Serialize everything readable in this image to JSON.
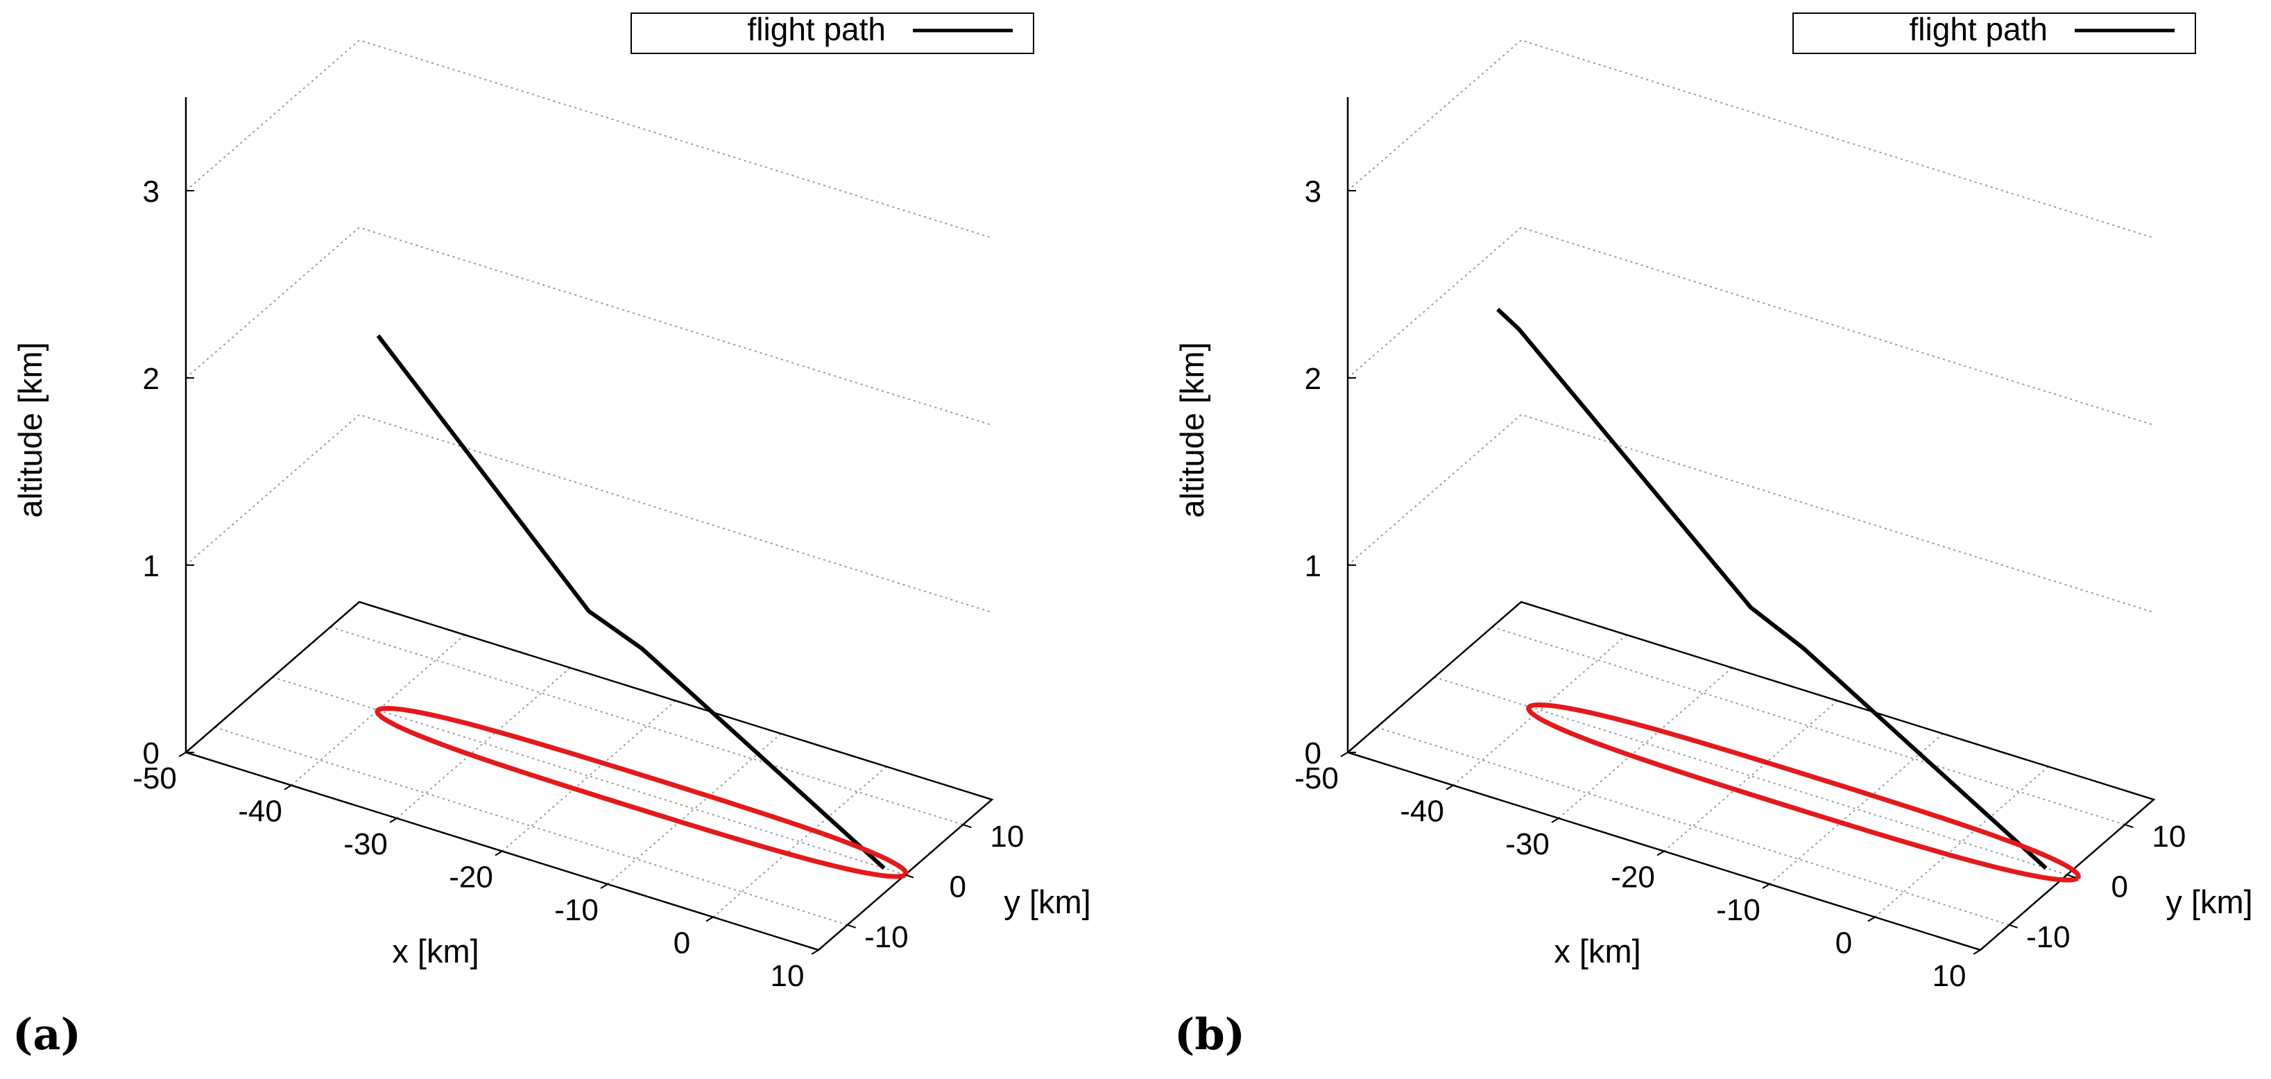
{
  "chart_data": [
    {
      "type": "line3d",
      "panel_label": "(a)",
      "legend": {
        "label": "flight path",
        "placement": "top-right"
      },
      "xlabel": "x [km]",
      "ylabel": "y [km]",
      "zlabel": "altitude [km]",
      "xlim": [
        -50,
        10
      ],
      "ylim": [
        -15,
        15
      ],
      "zlim": [
        0,
        3.5
      ],
      "x_ticks": [
        "-50",
        "-40",
        "-30",
        "-20",
        "-10",
        "0",
        "10"
      ],
      "y_ticks": [
        "-10",
        "0",
        "10"
      ],
      "z_ticks": [
        "0",
        "1",
        "2",
        "3"
      ],
      "series": [
        {
          "name": "flight path",
          "color": "#000000",
          "x": [
            -40,
            -20,
            -15,
            8
          ],
          "y": [
            0,
            0,
            0,
            0
          ],
          "z": [
            2.0,
            0.88,
            0.77,
            0.0
          ]
        },
        {
          "name": "loiter orbit",
          "color": "#e31a1c",
          "center": [
            -15,
            0,
            0
          ],
          "half_length_km": 25,
          "half_width_km": 3
        }
      ]
    },
    {
      "type": "line3d",
      "panel_label": "(b)",
      "legend": {
        "label": "flight path",
        "placement": "top-right"
      },
      "xlabel": "x [km]",
      "ylabel": "y [km]",
      "zlabel": "altitude [km]",
      "xlim": [
        -50,
        10
      ],
      "ylim": [
        -15,
        15
      ],
      "zlim": [
        0,
        3.5
      ],
      "x_ticks": [
        "-50",
        "-40",
        "-30",
        "-20",
        "-10",
        "0",
        "10"
      ],
      "y_ticks": [
        "-10",
        "0",
        "10"
      ],
      "z_ticks": [
        "0",
        "1",
        "2",
        "3"
      ],
      "series": [
        {
          "name": "flight path",
          "color": "#000000",
          "x": [
            -44,
            -42,
            -20,
            -15,
            8
          ],
          "y": [
            0,
            0,
            0,
            0,
            0
          ],
          "z": [
            2.07,
            2.0,
            0.9,
            0.77,
            0.0
          ]
        },
        {
          "name": "loiter orbit",
          "color": "#e31a1c",
          "center": [
            -15,
            0,
            0
          ],
          "half_length_km": 26,
          "half_width_km": 3.2
        }
      ]
    }
  ]
}
